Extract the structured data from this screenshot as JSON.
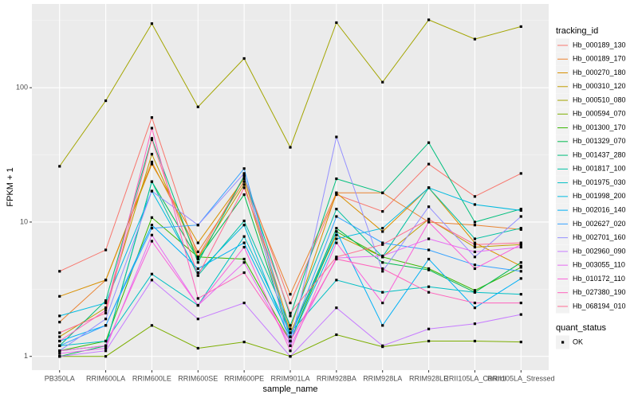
{
  "chart_data": {
    "type": "line",
    "x_label": "sample_name",
    "y_label": "FPKM + 1",
    "categories": [
      "PB350LA",
      "RRIM600LA",
      "RRIM600LE",
      "RRIM600SE",
      "RRIM600PE",
      "RRIM901LA",
      "RRIM928BA",
      "RRIM928LA",
      "RRIM928LE",
      "RRII105LA_Control",
      "RRII105LA_Stressed"
    ],
    "log_scale": true,
    "grid": true,
    "ylim": [
      0.79,
      420
    ],
    "yticks": [
      1,
      10,
      100
    ],
    "legend_title": "tracking_id",
    "point_legend": {
      "title": "quant_status",
      "levels": [
        "OK"
      ]
    },
    "series": [
      {
        "name": "Hb_000189_130",
        "color": "#F8766D",
        "values": [
          4.3,
          6.2,
          60,
          5.5,
          22,
          2.5,
          16,
          12,
          27,
          15.5,
          23
        ]
      },
      {
        "name": "Hb_000189_170",
        "color": "#EA8331",
        "values": [
          1.8,
          3.7,
          28,
          6,
          20,
          2.9,
          16.5,
          16.5,
          10,
          9.5,
          8.8
        ]
      },
      {
        "name": "Hb_000270_180",
        "color": "#D89000",
        "values": [
          2.8,
          3.7,
          27,
          7,
          21,
          1.6,
          16.5,
          8.5,
          18,
          7,
          4.7
        ]
      },
      {
        "name": "Hb_000310_120",
        "color": "#C09B00",
        "values": [
          1.4,
          2.3,
          32,
          5.4,
          19,
          1.5,
          8,
          5.5,
          10.5,
          6.5,
          6.8
        ]
      },
      {
        "name": "Hb_000510_080",
        "color": "#A3A500",
        "values": [
          26,
          80,
          300,
          72,
          165,
          36,
          305,
          110,
          320,
          230,
          285
        ]
      },
      {
        "name": "Hb_000594_070",
        "color": "#7CAE00",
        "values": [
          1.0,
          1.0,
          1.7,
          1.15,
          1.28,
          1.0,
          1.45,
          1.18,
          1.3,
          1.3,
          1.28
        ]
      },
      {
        "name": "Hb_001300_170",
        "color": "#39B600",
        "values": [
          1.1,
          1.3,
          10.8,
          5.5,
          5.3,
          1.3,
          8.5,
          5.5,
          4.5,
          3.1,
          4.6
        ]
      },
      {
        "name": "Hb_001329_070",
        "color": "#00BB4E",
        "values": [
          1.0,
          1.2,
          20,
          5.3,
          16,
          1.4,
          9,
          5,
          4.4,
          3,
          5
        ]
      },
      {
        "name": "Hb_001437_280",
        "color": "#00BF7D",
        "values": [
          1.2,
          2.6,
          42,
          5,
          22,
          2,
          21,
          16.5,
          39,
          10,
          12.5
        ]
      },
      {
        "name": "Hb_001817_100",
        "color": "#00C1A3",
        "values": [
          1.1,
          1.2,
          20,
          4,
          10.2,
          1.7,
          12.5,
          5.5,
          18,
          7.5,
          9
        ]
      },
      {
        "name": "Hb_001975_030",
        "color": "#00BFC4",
        "values": [
          1.2,
          1.3,
          4.1,
          2.4,
          7.8,
          1.5,
          3.7,
          3.0,
          3.3,
          3.0,
          2.9
        ]
      },
      {
        "name": "Hb_001998_200",
        "color": "#00BAE0",
        "values": [
          2.0,
          2.5,
          17,
          4.2,
          9.5,
          1.3,
          7.5,
          9.0,
          18,
          13.5,
          12.2
        ]
      },
      {
        "name": "Hb_002016_140",
        "color": "#00B0F6",
        "values": [
          1.3,
          1.7,
          9.5,
          4.5,
          7,
          1.4,
          8.5,
          1.7,
          5.3,
          2.3,
          3.8
        ]
      },
      {
        "name": "Hb_002627_020",
        "color": "#35A2FF",
        "values": [
          1.2,
          1.7,
          9,
          9.5,
          25,
          1.4,
          11,
          7,
          6.2,
          4.8,
          4.3
        ]
      },
      {
        "name": "Hb_002701_160",
        "color": "#9590FF",
        "values": [
          1.1,
          1.9,
          17,
          9.5,
          23,
          1.2,
          43,
          4.3,
          13,
          5.5,
          11
        ]
      },
      {
        "name": "Hb_002960_090",
        "color": "#C77CFF",
        "values": [
          1.0,
          1.1,
          3.7,
          1.9,
          2.5,
          1.0,
          2.3,
          1.2,
          1.6,
          1.75,
          2.05
        ]
      },
      {
        "name": "Hb_003055_110",
        "color": "#E76BF3",
        "values": [
          1.05,
          1.15,
          8,
          2.4,
          5,
          1.2,
          5.4,
          5.6,
          7.5,
          6,
          6.5
        ]
      },
      {
        "name": "Hb_010172_110",
        "color": "#FA62DB",
        "values": [
          1.1,
          1.2,
          7.2,
          2.4,
          6.5,
          1.1,
          7,
          2.5,
          10,
          4.5,
          6.8
        ]
      },
      {
        "name": "Hb_027380_190",
        "color": "#FF62BC",
        "values": [
          1.3,
          2.2,
          50,
          2.7,
          4.2,
          1.3,
          5.3,
          4.5,
          3,
          2.5,
          2.5
        ]
      },
      {
        "name": "Hb_068194_010",
        "color": "#FF6C91",
        "values": [
          1.5,
          2.1,
          41,
          4,
          18,
          2.1,
          5.5,
          6.8,
          10.5,
          6.8,
          7
        ]
      }
    ]
  }
}
